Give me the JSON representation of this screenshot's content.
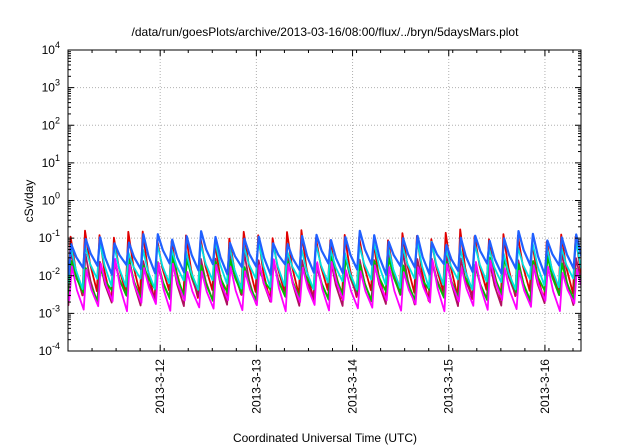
{
  "chart_data": {
    "type": "line",
    "title": "/data/run/goesPlots/archive/2013-03-16/08:00/flux/../bryn/5daysMars.plot",
    "xlabel": "Coordinated Universal Time (UTC)",
    "ylabel": "cSv/day",
    "yscale": "log",
    "ylim": [
      0.0001,
      10000
    ],
    "y_ticks": [
      {
        "value": 0.0001,
        "base": "10",
        "exp": "-4"
      },
      {
        "value": 0.001,
        "base": "10",
        "exp": "-3"
      },
      {
        "value": 0.01,
        "base": "10",
        "exp": "-2"
      },
      {
        "value": 0.1,
        "base": "10",
        "exp": "-1"
      },
      {
        "value": 1,
        "base": "10",
        "exp": "0"
      },
      {
        "value": 10,
        "base": "10",
        "exp": "1"
      },
      {
        "value": 100,
        "base": "10",
        "exp": "2"
      },
      {
        "value": 1000,
        "base": "10",
        "exp": "3"
      },
      {
        "value": 10000,
        "base": "10",
        "exp": "4"
      }
    ],
    "xlim": [
      "2013-03-11T01:00",
      "2013-03-16T09:00"
    ],
    "x_ticks": [
      "2013-3-12",
      "2013-3-13",
      "2013-3-14",
      "2013-3-15",
      "2013-3-16"
    ],
    "grid": true,
    "legend": "none",
    "oscillation_period_hours": 3.6,
    "series": [
      {
        "color": "#e00000",
        "peak_y": 0.11,
        "trough_y": 0.003
      },
      {
        "color": "#b01060",
        "peak_y": 0.03,
        "trough_y": 0.0022
      },
      {
        "color": "#00c000",
        "peak_y": 0.022,
        "trough_y": 0.003
      },
      {
        "color": "#ff00ff",
        "peak_y": 0.018,
        "trough_y": 0.0016
      },
      {
        "color": "#00e0e0",
        "peak_y": 0.06,
        "trough_y": 0.006
      },
      {
        "color": "#2060ff",
        "peak_y": 0.1,
        "trough_y": 0.015
      }
    ]
  }
}
